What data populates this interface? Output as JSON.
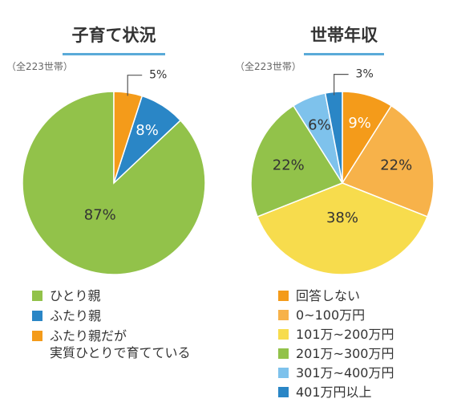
{
  "chart_data": [
    {
      "type": "pie",
      "title": "子育て状況",
      "subtitle": "（全223世帯）",
      "unit": "%",
      "categories": [
        "ひとり親",
        "ふたり親",
        "ふたり親だが\n実質ひとりで育てている"
      ],
      "values": [
        87,
        8,
        5
      ],
      "colors": [
        "#92c24a",
        "#2a86c6",
        "#f49b1a"
      ],
      "label_text_colors": [
        "#333333",
        "#ffffff",
        "#333333"
      ],
      "label_positions": [
        "inside",
        "inside",
        "outside"
      ],
      "start_angle_deg": 0,
      "direction": "counterclockwise",
      "legend_position": "bottom"
    },
    {
      "type": "pie",
      "title": "世帯年収",
      "subtitle": "（全223世帯）",
      "unit": "%",
      "categories": [
        "回答しない",
        "0~100万円",
        "101万~200万円",
        "201万~300万円",
        "301万~400万円",
        "401万円以上"
      ],
      "values": [
        9,
        22,
        38,
        22,
        6,
        3
      ],
      "colors": [
        "#f49b1a",
        "#f7b24a",
        "#f7dc4d",
        "#92c24a",
        "#7ec2ec",
        "#2a86c6"
      ],
      "label_text_colors": [
        "#ffffff",
        "#333333",
        "#333333",
        "#333333",
        "#333333",
        "#333333"
      ],
      "label_positions": [
        "inside",
        "inside",
        "inside",
        "inside",
        "inside",
        "outside"
      ],
      "start_angle_deg": 0,
      "direction": "clockwise",
      "legend_position": "bottom"
    }
  ]
}
